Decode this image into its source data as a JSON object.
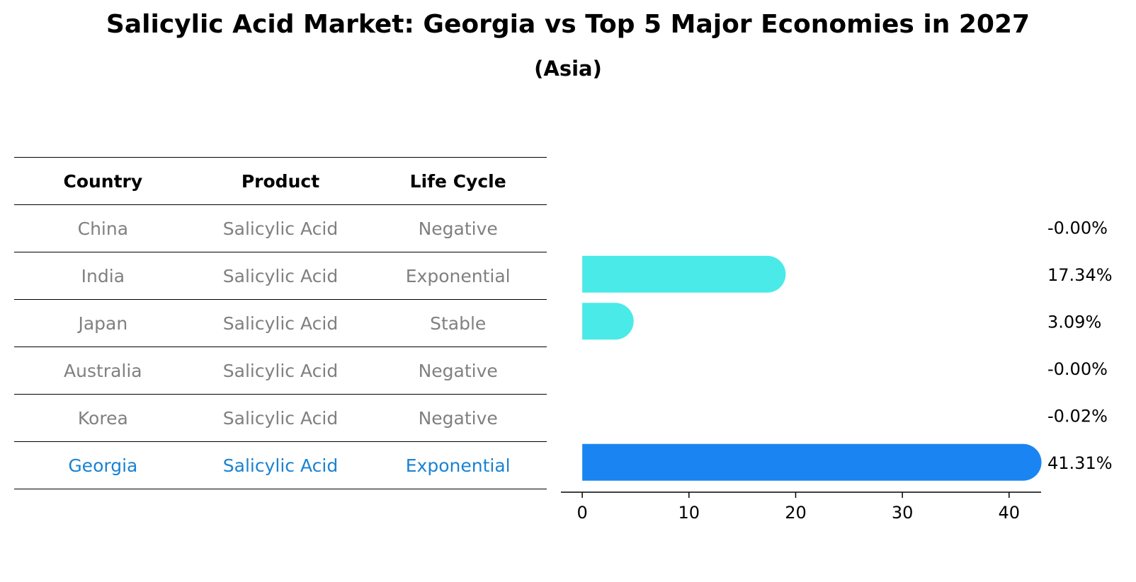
{
  "title": "Salicylic Acid Market: Georgia vs Top 5 Major Economies in 2027",
  "subtitle": "(Asia)",
  "table": {
    "headers": [
      "Country",
      "Product",
      "Life Cycle"
    ],
    "rows": [
      {
        "country": "China",
        "product": "Salicylic Acid",
        "life_cycle": "Negative"
      },
      {
        "country": "India",
        "product": "Salicylic Acid",
        "life_cycle": "Exponential"
      },
      {
        "country": "Japan",
        "product": "Salicylic Acid",
        "life_cycle": "Stable"
      },
      {
        "country": "Australia",
        "product": "Salicylic Acid",
        "life_cycle": "Negative"
      },
      {
        "country": "Korea",
        "product": "Salicylic Acid",
        "life_cycle": "Negative"
      },
      {
        "country": "Georgia",
        "product": "Salicylic Acid",
        "life_cycle": "Exponential"
      }
    ],
    "highlight_row": "Georgia"
  },
  "colors": {
    "bar": "#4aeae8",
    "highlight_bar": "#1a85f2",
    "text_gray": "#808080",
    "highlight_text": "#1a82d2"
  },
  "chart_data": {
    "type": "bar",
    "orientation": "horizontal",
    "categories": [
      "China",
      "India",
      "Japan",
      "Australia",
      "Korea",
      "Georgia"
    ],
    "values": [
      -0.0,
      17.34,
      3.09,
      -0.0,
      -0.02,
      41.31
    ],
    "value_labels": [
      "-0.00%",
      "17.34%",
      "3.09%",
      "-0.00%",
      "-0.02%",
      "41.31%"
    ],
    "xlim": [
      -2,
      43
    ],
    "xticks": [
      0,
      10,
      20,
      30,
      40
    ],
    "grid": false
  }
}
